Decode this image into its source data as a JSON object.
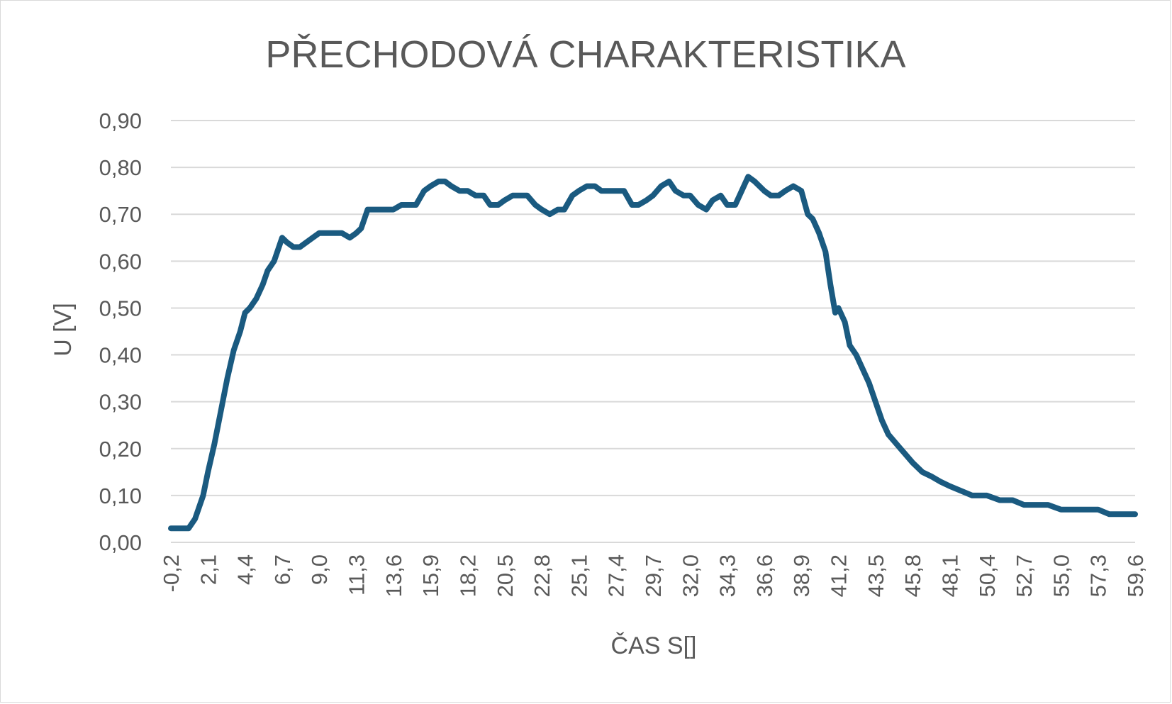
{
  "chart_data": {
    "type": "line",
    "title": "PŘECHODOVÁ CHARAKTERISTIKA",
    "xlabel": "ČAS S[]",
    "ylabel": "U [V]",
    "ylim": [
      0,
      0.9
    ],
    "y_ticks": [
      "0,00",
      "0,10",
      "0,20",
      "0,30",
      "0,40",
      "0,50",
      "0,60",
      "0,70",
      "0,80",
      "0,90"
    ],
    "x_ticks": [
      "-0,2",
      "2,1",
      "4,4",
      "6,7",
      "9,0",
      "11,3",
      "13,6",
      "15,9",
      "18,2",
      "20,5",
      "22,8",
      "25,1",
      "27,4",
      "29,7",
      "32,0",
      "34,3",
      "36,6",
      "38,9",
      "41,2",
      "43,5",
      "45,8",
      "48,1",
      "50,4",
      "52,7",
      "55,0",
      "57,3",
      "59,6"
    ],
    "xlim": [
      -0.2,
      59.6
    ],
    "grid": true,
    "legend": "none",
    "color": "#1a5a80",
    "series": [
      {
        "x": [
          -0.2,
          0.4,
          0.9,
          1.3,
          1.8,
          2.1,
          2.5,
          2.9,
          3.3,
          3.7,
          4.1,
          4.4,
          4.7,
          5.1,
          5.5,
          5.8,
          6.2,
          6.7,
          7.0,
          7.4,
          7.8,
          8.2,
          8.6,
          9.0,
          9.5,
          10.0,
          10.4,
          10.9,
          11.3,
          11.6,
          12.0,
          12.5,
          13.0,
          13.6,
          14.1,
          14.6,
          15.0,
          15.5,
          15.9,
          16.4,
          16.8,
          17.2,
          17.7,
          18.2,
          18.7,
          19.2,
          19.6,
          20.1,
          20.5,
          21.0,
          21.5,
          21.9,
          22.4,
          22.8,
          23.3,
          23.8,
          24.2,
          24.7,
          25.1,
          25.6,
          26.1,
          26.5,
          27.0,
          27.4,
          27.9,
          28.4,
          28.8,
          29.3,
          29.7,
          30.2,
          30.7,
          31.1,
          31.6,
          32.0,
          32.5,
          33.0,
          33.4,
          33.9,
          34.3,
          34.8,
          35.2,
          35.6,
          36.0,
          36.6,
          37.0,
          37.5,
          37.9,
          38.4,
          38.9,
          39.3,
          39.6,
          40.0,
          40.4,
          40.7,
          41.0,
          41.2,
          41.6,
          41.9,
          42.3,
          42.7,
          43.1,
          43.5,
          43.9,
          44.3,
          44.8,
          45.3,
          45.8,
          46.4,
          47.0,
          47.5,
          48.1,
          48.8,
          49.5,
          50.4,
          51.2,
          52.0,
          52.7,
          53.5,
          54.2,
          55.0,
          55.8,
          56.5,
          57.3,
          58.0,
          58.8,
          59.6
        ],
        "y": [
          0.03,
          0.03,
          0.03,
          0.05,
          0.1,
          0.15,
          0.21,
          0.28,
          0.35,
          0.41,
          0.45,
          0.49,
          0.5,
          0.52,
          0.55,
          0.58,
          0.6,
          0.65,
          0.64,
          0.63,
          0.63,
          0.64,
          0.65,
          0.66,
          0.66,
          0.66,
          0.66,
          0.65,
          0.66,
          0.67,
          0.71,
          0.71,
          0.71,
          0.71,
          0.72,
          0.72,
          0.72,
          0.75,
          0.76,
          0.77,
          0.77,
          0.76,
          0.75,
          0.75,
          0.74,
          0.74,
          0.72,
          0.72,
          0.73,
          0.74,
          0.74,
          0.74,
          0.72,
          0.71,
          0.7,
          0.71,
          0.71,
          0.74,
          0.75,
          0.76,
          0.76,
          0.75,
          0.75,
          0.75,
          0.75,
          0.72,
          0.72,
          0.73,
          0.74,
          0.76,
          0.77,
          0.75,
          0.74,
          0.74,
          0.72,
          0.71,
          0.73,
          0.74,
          0.72,
          0.72,
          0.75,
          0.78,
          0.77,
          0.75,
          0.74,
          0.74,
          0.75,
          0.76,
          0.75,
          0.7,
          0.69,
          0.66,
          0.62,
          0.55,
          0.49,
          0.5,
          0.47,
          0.42,
          0.4,
          0.37,
          0.34,
          0.3,
          0.26,
          0.23,
          0.21,
          0.19,
          0.17,
          0.15,
          0.14,
          0.13,
          0.12,
          0.11,
          0.1,
          0.1,
          0.09,
          0.09,
          0.08,
          0.08,
          0.08,
          0.07,
          0.07,
          0.07,
          0.07,
          0.06,
          0.06,
          0.06
        ]
      }
    ]
  }
}
